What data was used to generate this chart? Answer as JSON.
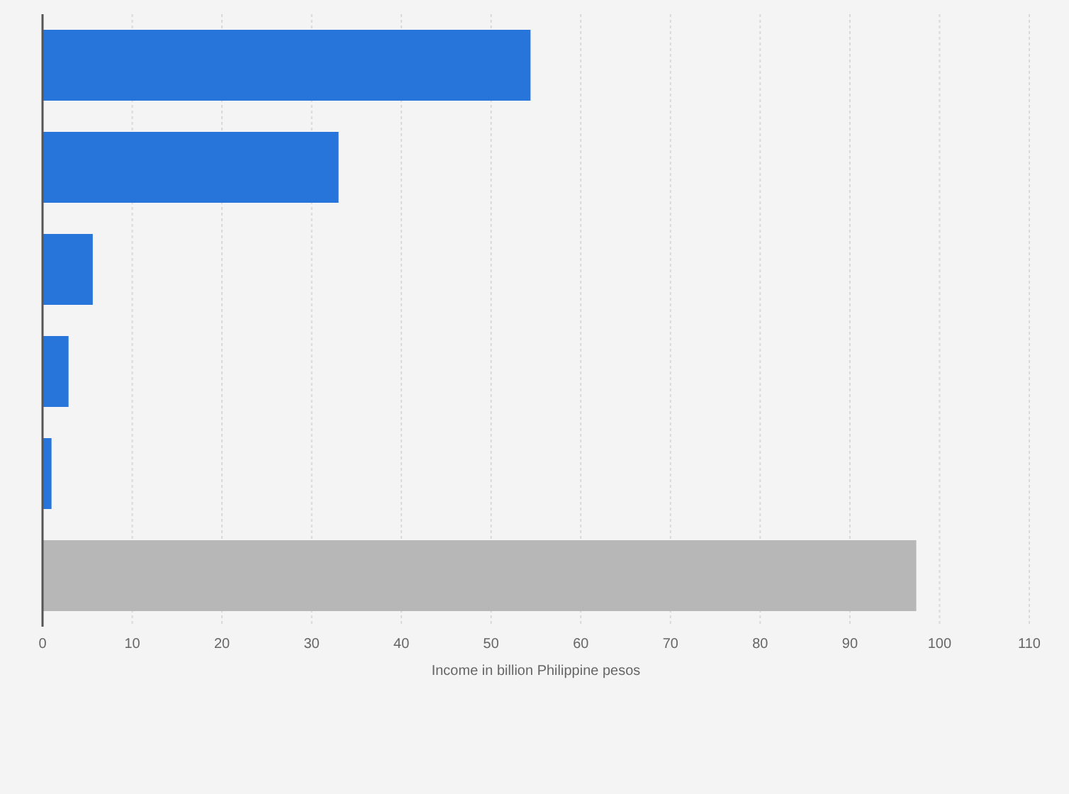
{
  "chart_data": {
    "type": "bar",
    "orientation": "horizontal",
    "categories": [
      null,
      null,
      null,
      null,
      null,
      null
    ],
    "values": [
      54.4,
      33.0,
      5.6,
      2.9,
      1.0,
      97.4
    ],
    "colors": [
      "#2775da",
      "#2775da",
      "#2775da",
      "#2775da",
      "#2775da",
      "#b7b7b7"
    ],
    "xlabel": "Income in billion Philippine pesos",
    "xlim": [
      0,
      110
    ],
    "xticks": [
      0,
      10,
      20,
      30,
      40,
      50,
      60,
      70,
      80,
      90,
      100,
      110
    ],
    "grid": "x",
    "tick_labels": "x"
  }
}
